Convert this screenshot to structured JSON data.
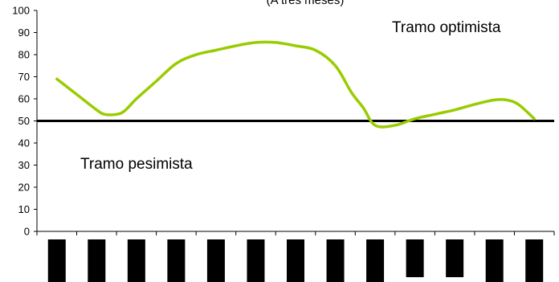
{
  "chart_data": {
    "type": "line",
    "title": "",
    "subtitle": "(A tres meses)",
    "xlabel": "",
    "ylabel": "",
    "ylim": [
      0,
      100
    ],
    "yticks": [
      0,
      10,
      20,
      30,
      40,
      50,
      60,
      70,
      80,
      90,
      100
    ],
    "grid": false,
    "legend": "none",
    "series": [
      {
        "color": "#99CC00",
        "x": [
          0,
          0.5,
          1,
          1.2,
          1.5,
          1.7,
          2,
          2.5,
          3,
          3.5,
          4,
          4.5,
          5,
          5.5,
          6,
          6.5,
          7,
          7.4,
          7.7,
          8,
          8.5,
          9,
          9.5,
          10,
          10.5,
          11,
          11.3,
          11.6,
          12
        ],
        "y": [
          69,
          62,
          55,
          53,
          53,
          54.5,
          60,
          68,
          76,
          80,
          82,
          84,
          85.5,
          85.5,
          84,
          82,
          75,
          63,
          56,
          48,
          48,
          51,
          53,
          55,
          57.5,
          59.5,
          59.5,
          57.5,
          51
        ]
      }
    ],
    "reference_line": {
      "y": 50,
      "color": "#000000"
    },
    "annotations": [
      {
        "text": "Tramo optimista"
      },
      {
        "text": "Tramo pesimista"
      }
    ],
    "x_category_count": 13,
    "x_tick_labels_redacted": true
  }
}
